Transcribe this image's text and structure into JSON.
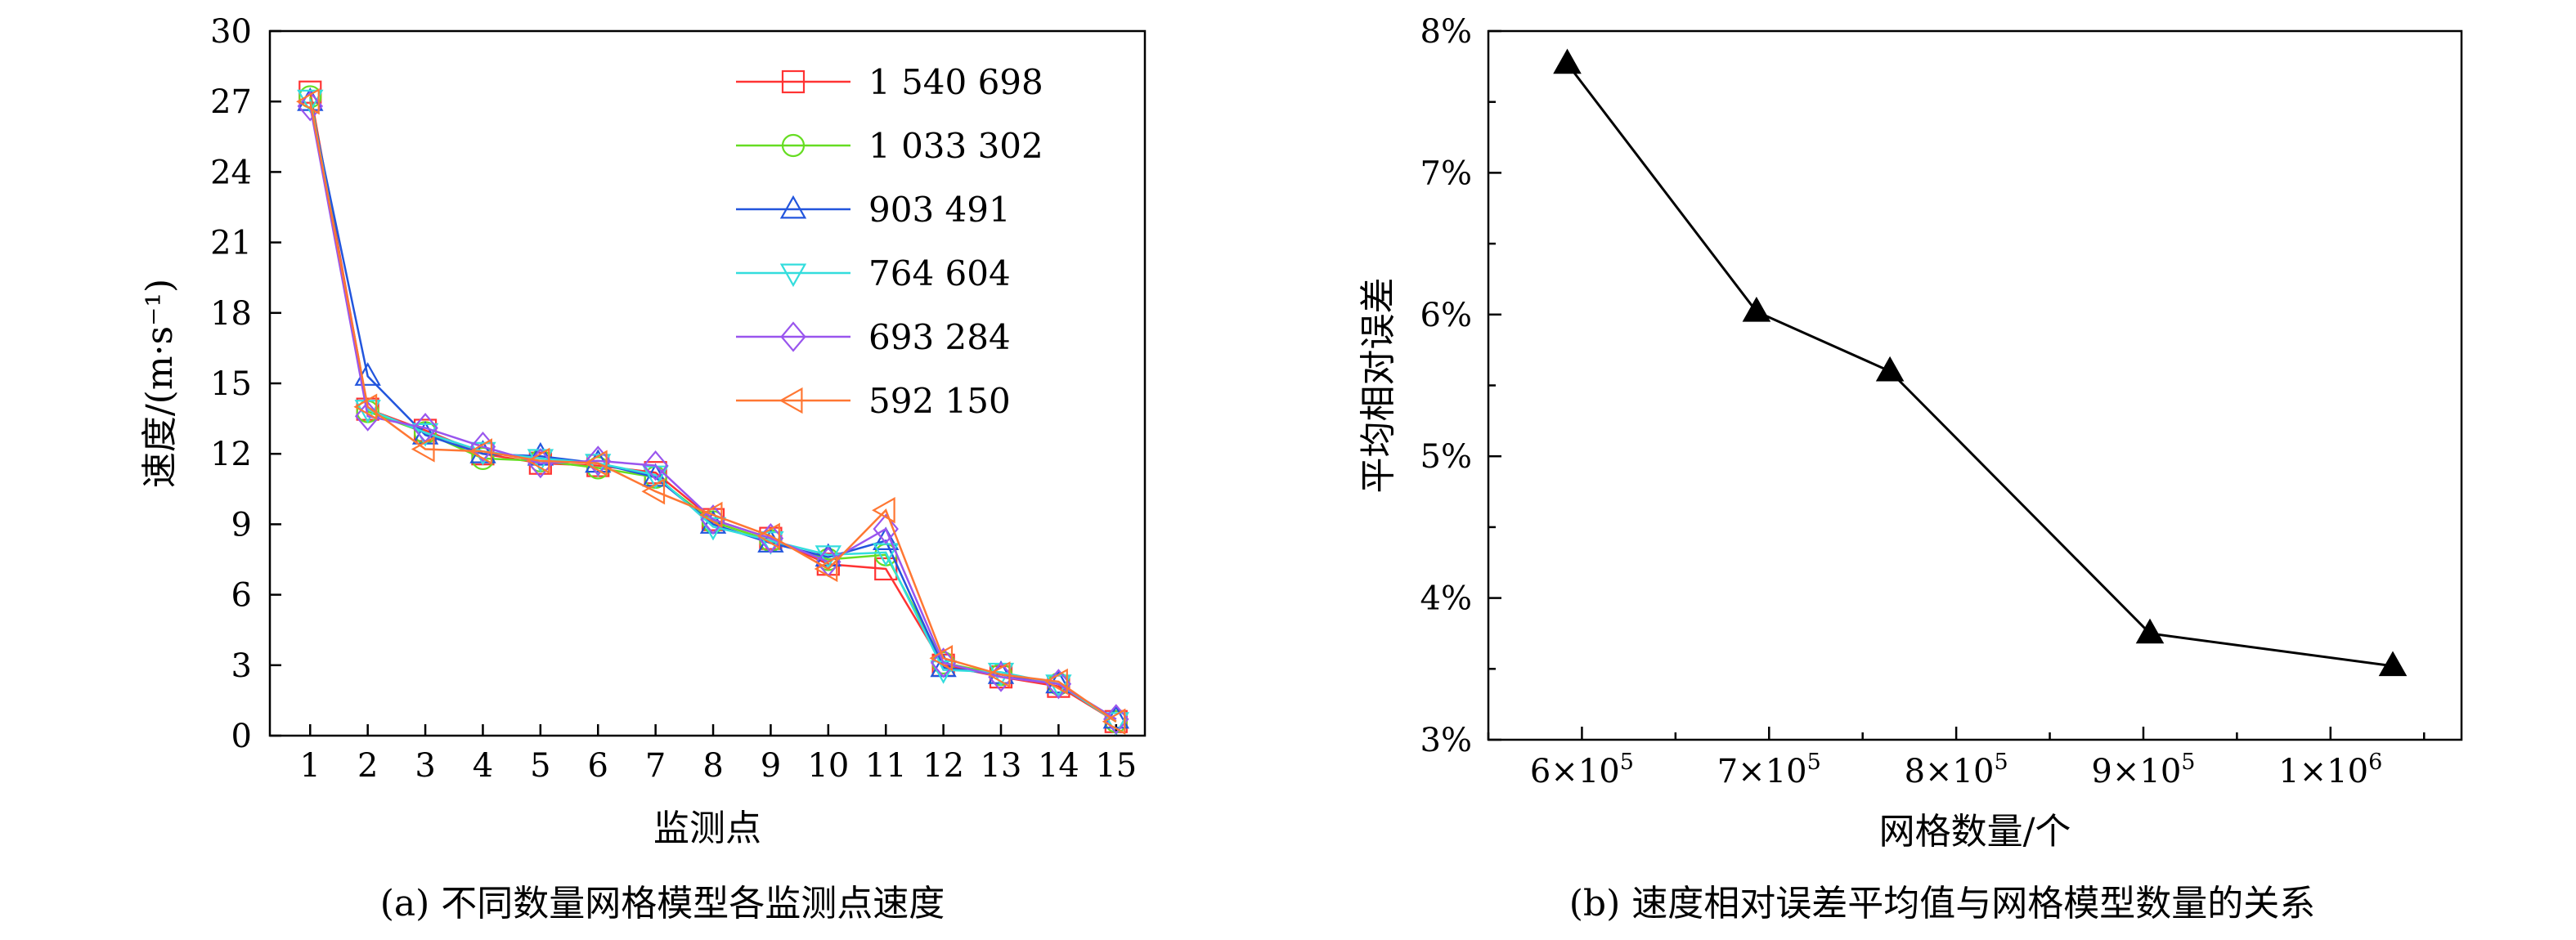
{
  "chart_data": [
    {
      "type": "line",
      "caption": "(a) 不同数量网格模型各监测点速度",
      "xlabel": "监测点",
      "ylabel": "速度/(m·s⁻¹)",
      "x": [
        1,
        2,
        3,
        4,
        5,
        6,
        7,
        8,
        9,
        10,
        11,
        12,
        13,
        14,
        15
      ],
      "xlim": [
        0.3,
        15.5
      ],
      "ylim": [
        0,
        30
      ],
      "yticks": [
        0,
        3,
        6,
        9,
        12,
        15,
        18,
        21,
        24,
        27,
        30
      ],
      "grid": false,
      "legend_position": "top-right",
      "series": [
        {
          "name": "1 540 698",
          "marker": "square",
          "color": "#ff3333",
          "values": [
            27.4,
            13.9,
            13.0,
            12.0,
            11.6,
            11.5,
            11.2,
            9.2,
            8.4,
            7.3,
            7.1,
            3.0,
            2.5,
            2.1,
            0.6
          ]
        },
        {
          "name": "1 033 302",
          "marker": "circle",
          "color": "#66dd22",
          "values": [
            27.2,
            13.8,
            12.9,
            11.8,
            11.7,
            11.4,
            11.0,
            9.1,
            8.3,
            7.5,
            7.7,
            3.1,
            2.6,
            2.2,
            0.6
          ]
        },
        {
          "name": "903 491",
          "marker": "triangle-up",
          "color": "#2255dd",
          "values": [
            27.0,
            15.3,
            12.8,
            12.0,
            11.9,
            11.6,
            11.0,
            9.0,
            8.2,
            7.6,
            8.3,
            2.9,
            2.6,
            2.2,
            0.7
          ]
        },
        {
          "name": "764 604",
          "marker": "triangle-down",
          "color": "#33dddd",
          "values": [
            27.1,
            13.9,
            12.9,
            12.1,
            11.8,
            11.6,
            11.1,
            8.9,
            8.3,
            7.7,
            7.8,
            2.8,
            2.7,
            2.2,
            0.6
          ]
        },
        {
          "name": "693 284",
          "marker": "diamond",
          "color": "#9955ee",
          "values": [
            26.8,
            13.6,
            13.1,
            12.3,
            11.6,
            11.7,
            11.5,
            9.2,
            8.4,
            7.4,
            8.8,
            3.1,
            2.5,
            2.2,
            0.7
          ]
        },
        {
          "name": "592 150",
          "marker": "triangle-left",
          "color": "#ff7733",
          "values": [
            27.0,
            14.0,
            12.2,
            12.1,
            11.7,
            11.6,
            10.4,
            9.4,
            8.5,
            7.1,
            9.6,
            3.3,
            2.6,
            2.3,
            0.6
          ]
        }
      ]
    },
    {
      "type": "line",
      "caption": "(b) 速度相对误差平均值与网格模型数量的关系",
      "xlabel": "网格数量/个",
      "ylabel": "平均相对误差",
      "xlim": [
        550000,
        1070000
      ],
      "ylim": [
        3,
        8
      ],
      "xticks": [
        600000,
        700000,
        800000,
        900000,
        1000000
      ],
      "xtick_labels": [
        {
          "base": "6×10",
          "exp": "5"
        },
        {
          "base": "7×10",
          "exp": "5"
        },
        {
          "base": "8×10",
          "exp": "5"
        },
        {
          "base": "9×10",
          "exp": "5"
        },
        {
          "base": "1×10",
          "exp": "6"
        }
      ],
      "yticks": [
        3,
        4,
        5,
        6,
        7,
        8
      ],
      "ytick_labels": [
        "3%",
        "4%",
        "5%",
        "6%",
        "7%",
        "8%"
      ],
      "grid": false,
      "series": [
        {
          "marker": "triangle-up",
          "color": "#000000",
          "x": [
            592150,
            693284,
            764604,
            903491,
            1033302
          ],
          "values": [
            7.77,
            6.02,
            5.6,
            3.75,
            3.52
          ]
        }
      ]
    }
  ]
}
